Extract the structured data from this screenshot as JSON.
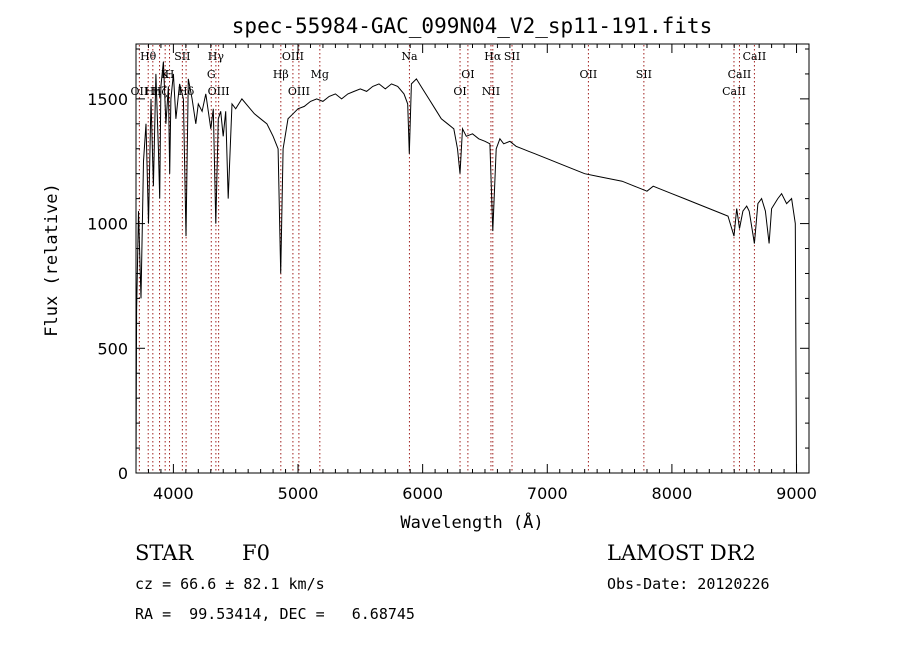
{
  "chart_data": {
    "type": "line",
    "title": "spec-55984-GAC_099N04_V2_sp11-191.fits",
    "xlabel": "Wavelength (Å)",
    "ylabel": "Flux (relative)",
    "xlim": [
      3700,
      9100
    ],
    "ylim": [
      0,
      1720
    ],
    "xticks": [
      4000,
      5000,
      6000,
      7000,
      8000,
      9000
    ],
    "yticks": [
      0,
      500,
      1000,
      1500
    ],
    "grid": false,
    "series": [
      {
        "values_x": [
          3700,
          3705,
          3720,
          3740,
          3760,
          3780,
          3800,
          3820,
          3840,
          3860,
          3880,
          3890,
          3900,
          3920,
          3940,
          3960,
          3970,
          3980,
          4000,
          4020,
          4050,
          4080,
          4101,
          4120,
          4150,
          4180,
          4200,
          4230,
          4260,
          4300,
          4320,
          4340,
          4360,
          4380,
          4400,
          4420,
          4440,
          4470,
          4500,
          4550,
          4600,
          4650,
          4700,
          4750,
          4800,
          4840,
          4861,
          4880,
          4920,
          4960,
          5000,
          5050,
          5100,
          5150,
          5200,
          5250,
          5300,
          5350,
          5400,
          5450,
          5500,
          5550,
          5600,
          5650,
          5700,
          5750,
          5800,
          5850,
          5880,
          5893,
          5910,
          5950,
          6000,
          6050,
          6100,
          6150,
          6200,
          6250,
          6280,
          6300,
          6320,
          6350,
          6400,
          6450,
          6500,
          6540,
          6563,
          6590,
          6620,
          6650,
          6700,
          6750,
          6800,
          6850,
          6900,
          6950,
          7000,
          7100,
          7200,
          7300,
          7400,
          7500,
          7600,
          7700,
          7750,
          7800,
          7850,
          7900,
          8000,
          8100,
          8200,
          8300,
          8400,
          8450,
          8498,
          8520,
          8542,
          8570,
          8600,
          8620,
          8662,
          8690,
          8720,
          8750,
          8780,
          8800,
          8850,
          8880,
          8920,
          8960,
          8990,
          9000
        ],
        "values_y": [
          0,
          650,
          1050,
          700,
          1250,
          1400,
          1000,
          1500,
          1150,
          1600,
          1300,
          1100,
          1550,
          1650,
          1400,
          1550,
          1200,
          1500,
          1600,
          1420,
          1560,
          1500,
          950,
          1580,
          1500,
          1400,
          1480,
          1450,
          1520,
          1380,
          1460,
          1000,
          1420,
          1450,
          1350,
          1450,
          1100,
          1480,
          1460,
          1500,
          1470,
          1440,
          1420,
          1400,
          1350,
          1300,
          800,
          1300,
          1420,
          1440,
          1460,
          1470,
          1490,
          1500,
          1490,
          1510,
          1520,
          1500,
          1520,
          1530,
          1540,
          1530,
          1550,
          1560,
          1540,
          1560,
          1550,
          1520,
          1480,
          1280,
          1560,
          1580,
          1540,
          1500,
          1460,
          1420,
          1400,
          1380,
          1300,
          1200,
          1380,
          1350,
          1360,
          1340,
          1330,
          1320,
          970,
          1300,
          1340,
          1320,
          1330,
          1310,
          1300,
          1290,
          1280,
          1270,
          1260,
          1240,
          1220,
          1200,
          1190,
          1180,
          1170,
          1150,
          1140,
          1130,
          1150,
          1140,
          1120,
          1100,
          1080,
          1060,
          1040,
          1030,
          950,
          1060,
          980,
          1050,
          1070,
          1050,
          920,
          1080,
          1100,
          1050,
          920,
          1060,
          1100,
          1120,
          1080,
          1100,
          1000,
          0
        ]
      }
    ],
    "line_markers": [
      {
        "x": 3727,
        "label": "OII",
        "row": 2
      },
      {
        "x": 3798,
        "label": "Hθ",
        "row": 0
      },
      {
        "x": 3835,
        "label": "Hη",
        "row": 2
      },
      {
        "x": 3889,
        "label": "Hζ",
        "row": 2
      },
      {
        "x": 3934,
        "label": "K",
        "row": 1
      },
      {
        "x": 3969,
        "label": "H",
        "row": 1
      },
      {
        "x": 4072,
        "label": "SII",
        "row": 0
      },
      {
        "x": 4102,
        "label": "Hδ",
        "row": 2
      },
      {
        "x": 4304,
        "label": "G",
        "row": 1
      },
      {
        "x": 4341,
        "label": "Hγ",
        "row": 0
      },
      {
        "x": 4363,
        "label": "OIII",
        "row": 2
      },
      {
        "x": 4862,
        "label": "Hβ",
        "row": 1
      },
      {
        "x": 4959,
        "label": "OIII",
        "row": 0
      },
      {
        "x": 5007,
        "label": "OIII",
        "row": 2
      },
      {
        "x": 5175,
        "label": "Mg",
        "row": 1
      },
      {
        "x": 5894,
        "label": "Na",
        "row": 0
      },
      {
        "x": 6300,
        "label": "OI",
        "row": 2
      },
      {
        "x": 6363,
        "label": "OI",
        "row": 1
      },
      {
        "x": 6548,
        "label": "NII",
        "row": 2
      },
      {
        "x": 6563,
        "label": "Hα",
        "row": 0
      },
      {
        "x": 6717,
        "label": "SII",
        "row": 0
      },
      {
        "x": 7330,
        "label": "OII",
        "row": 1
      },
      {
        "x": 7775,
        "label": "SII",
        "row": 1
      },
      {
        "x": 8498,
        "label": "CaII",
        "row": 2
      },
      {
        "x": 8542,
        "label": "CaII",
        "row": 1
      },
      {
        "x": 8662,
        "label": "CaII",
        "row": 0
      }
    ]
  },
  "info": {
    "class_label": "STAR",
    "subclass_label": "F0",
    "survey": "LAMOST DR2",
    "cz": "cz = 66.6 ± 82.1 km/s",
    "obs_date": "Obs-Date: 20120226",
    "coords": "RA =  99.53414, DEC =   6.68745"
  },
  "colors": {
    "marker_line": "#a0201e",
    "spectrum": "#000000"
  }
}
